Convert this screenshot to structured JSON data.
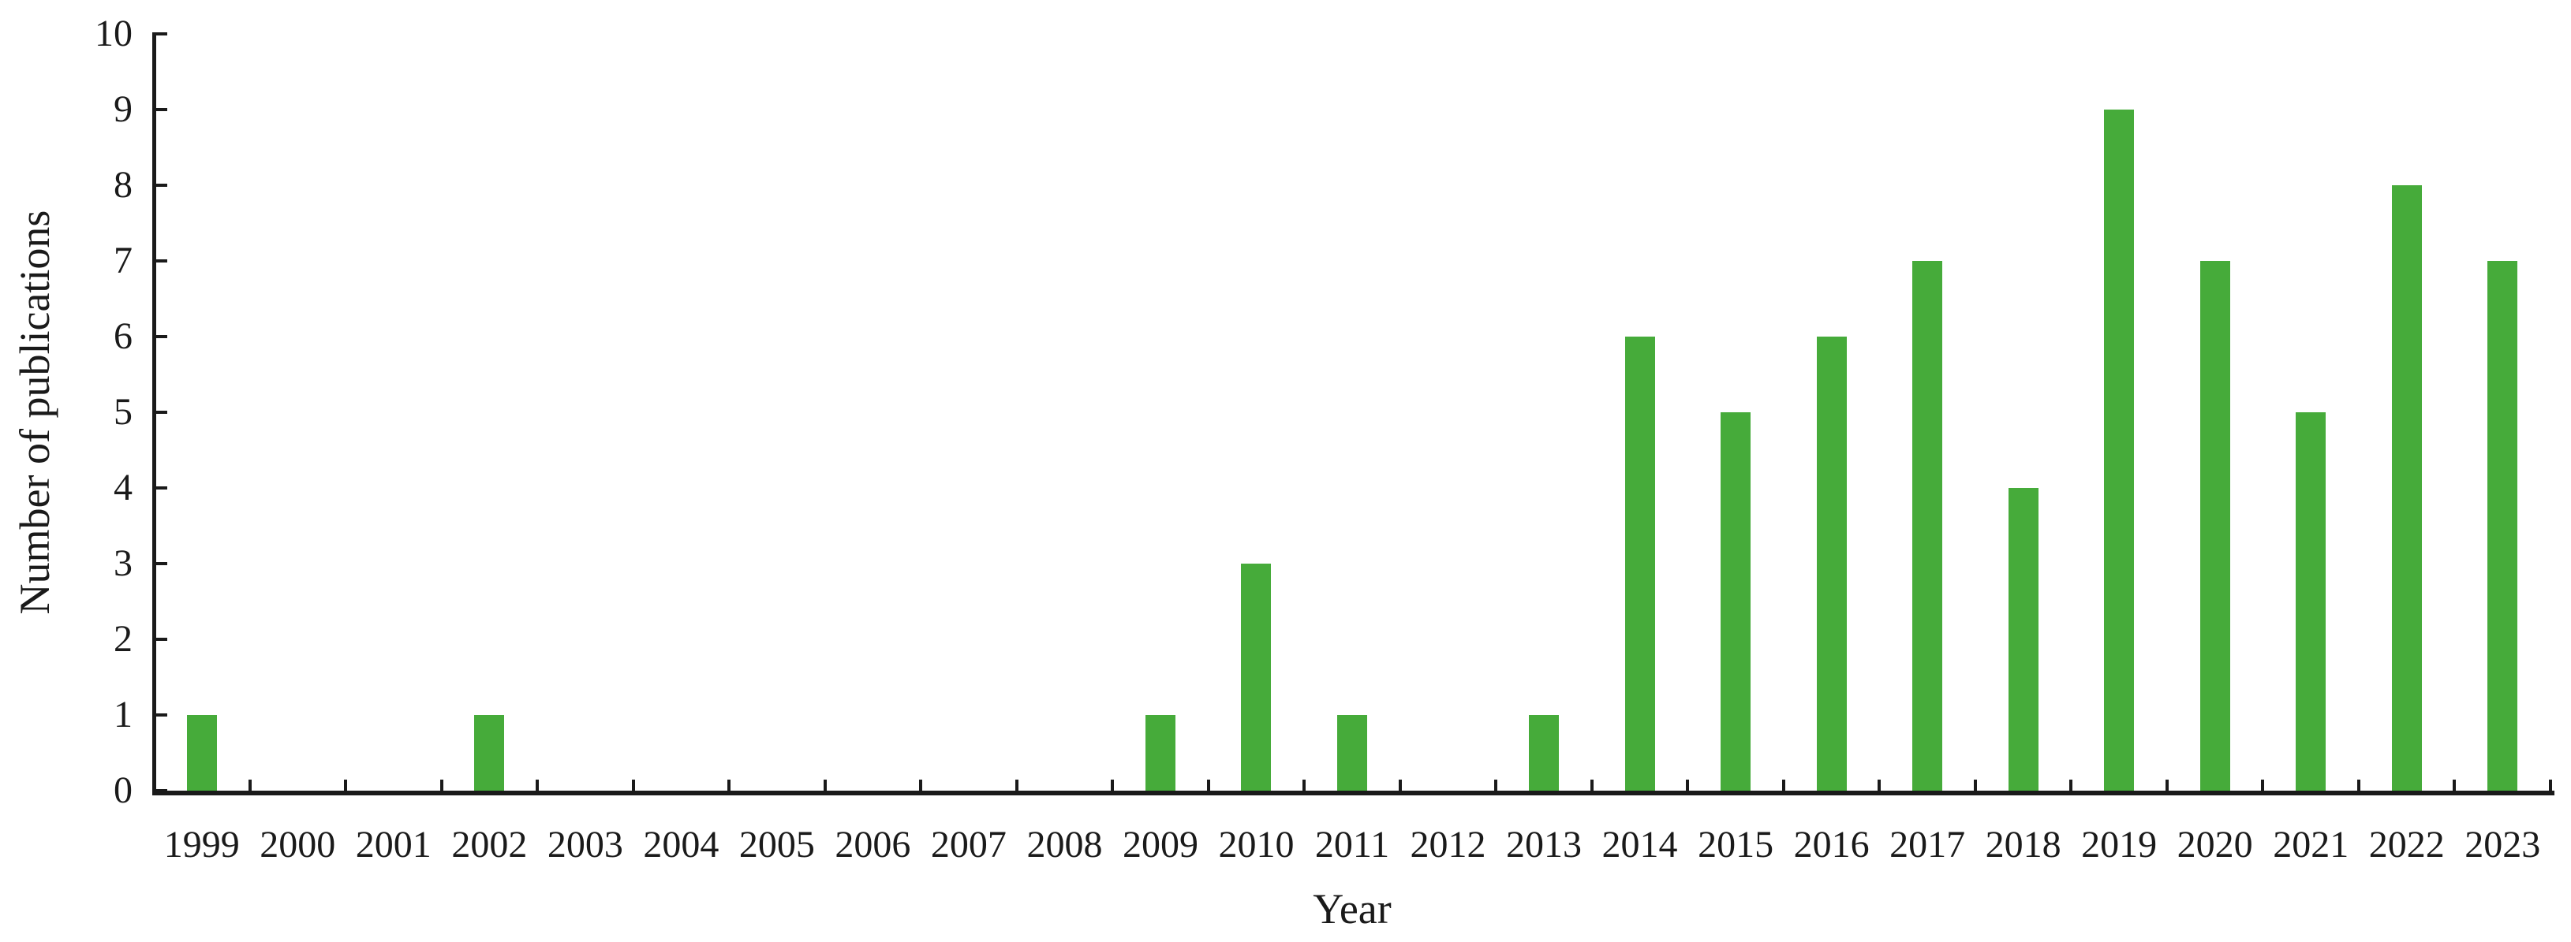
{
  "chart_data": {
    "type": "bar",
    "title": "",
    "xlabel": "Year",
    "ylabel": "Number of publications",
    "categories": [
      "1999",
      "2000",
      "2001",
      "2002",
      "2003",
      "2004",
      "2005",
      "2006",
      "2007",
      "2008",
      "2009",
      "2010",
      "2011",
      "2012",
      "2013",
      "2014",
      "2015",
      "2016",
      "2017",
      "2018",
      "2019",
      "2020",
      "2021",
      "2022",
      "2023"
    ],
    "values": [
      1,
      0,
      0,
      1,
      0,
      0,
      0,
      0,
      0,
      0,
      1,
      3,
      1,
      0,
      1,
      6,
      5,
      6,
      7,
      4,
      9,
      7,
      5,
      8,
      7
    ],
    "ylim": [
      0,
      10
    ],
    "yticks": [
      0,
      1,
      2,
      3,
      4,
      5,
      6,
      7,
      8,
      9,
      10
    ],
    "grid": false,
    "legend": "none",
    "tick_style": "inside",
    "bar_color": "#46AB3A",
    "axis_color": "#1A1A1A",
    "text_color": "#1A1A1A",
    "background": "#FFFFFF"
  }
}
